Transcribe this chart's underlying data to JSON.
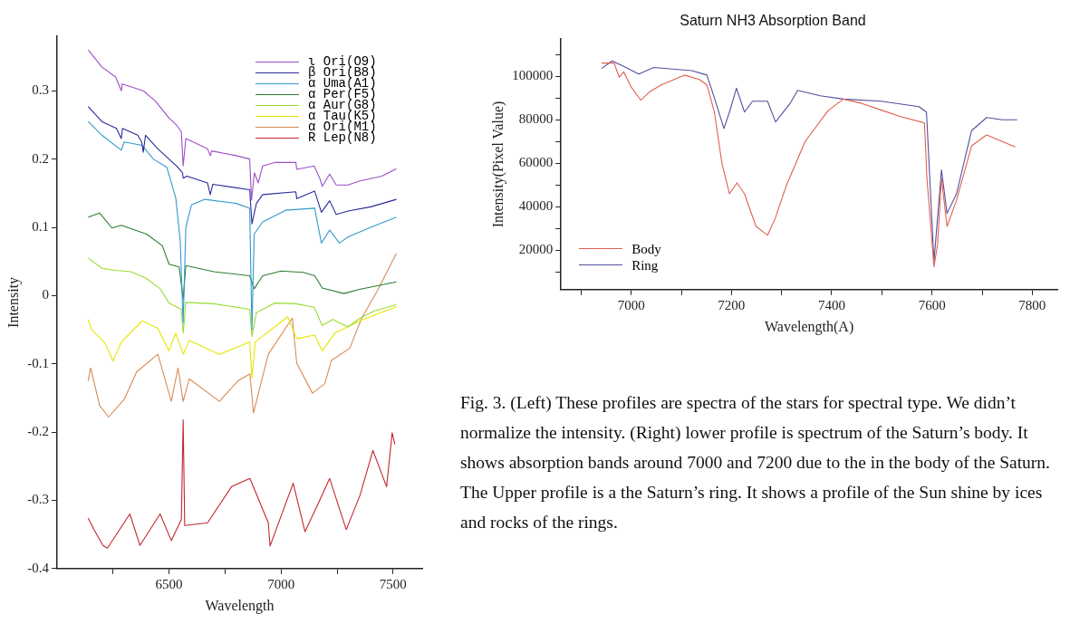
{
  "chart_data": [
    {
      "type": "line",
      "xlabel": "Wavelength",
      "ylabel": "Intensity",
      "xlim": [
        6000,
        7630
      ],
      "xticks": [
        {
          "value": 6250,
          "label": null
        },
        6500,
        {
          "value": 6750,
          "label": null
        },
        7000,
        {
          "value": 7250,
          "label": null
        },
        7500
      ],
      "ylim": [
        -0.4,
        0.38
      ],
      "yticks": [
        -0.4,
        -0.3,
        -0.2,
        -0.1,
        0,
        0.1,
        0.2,
        0.3
      ],
      "grid": false,
      "legend": "top right",
      "marker": "none",
      "line_style": "solid",
      "series": [
        {
          "name": "ι Ori(O9)",
          "color": "#9b4fc8",
          "x": [
            6139,
            6200,
            6262,
            6287,
            6291,
            6385,
            6439,
            6500,
            6533,
            6555,
            6563,
            6575,
            6672,
            6684,
            6690,
            6800,
            6860,
            6868,
            6881,
            6898,
            6918,
            6971,
            7066,
            7070,
            7148,
            7175,
            7184,
            7217,
            7246,
            7299,
            7352,
            7450,
            7515
          ],
          "values": [
            0.36,
            0.335,
            0.32,
            0.3,
            0.31,
            0.3,
            0.285,
            0.26,
            0.25,
            0.24,
            0.19,
            0.23,
            0.215,
            0.205,
            0.212,
            0.205,
            0.2,
            0.14,
            0.18,
            0.165,
            0.19,
            0.195,
            0.195,
            0.185,
            0.19,
            0.17,
            0.16,
            0.178,
            0.162,
            0.162,
            0.168,
            0.175,
            0.186
          ]
        },
        {
          "name": "β Ori(B8)",
          "color": "#2a2a9c",
          "x": [
            6139,
            6200,
            6265,
            6287,
            6292,
            6360,
            6378,
            6385,
            6395,
            6450,
            6533,
            6560,
            6563,
            6580,
            6672,
            6684,
            6695,
            6860,
            6870,
            6890,
            6918,
            7066,
            7070,
            7150,
            7180,
            7217,
            7246,
            7300,
            7400,
            7515
          ],
          "values": [
            0.277,
            0.255,
            0.245,
            0.23,
            0.245,
            0.235,
            0.225,
            0.21,
            0.235,
            0.215,
            0.19,
            0.18,
            0.172,
            0.175,
            0.165,
            0.148,
            0.163,
            0.155,
            0.105,
            0.135,
            0.148,
            0.152,
            0.142,
            0.153,
            0.122,
            0.139,
            0.119,
            0.124,
            0.13,
            0.141
          ]
        },
        {
          "name": "α Uma(A1)",
          "color": "#3399cc",
          "x": [
            6139,
            6200,
            6287,
            6300,
            6380,
            6430,
            6490,
            6530,
            6550,
            6563,
            6575,
            6600,
            6660,
            6800,
            6860,
            6870,
            6880,
            6918,
            7020,
            7150,
            7180,
            7217,
            7260,
            7300,
            7400,
            7515
          ],
          "values": [
            0.255,
            0.235,
            0.213,
            0.225,
            0.22,
            0.2,
            0.188,
            0.143,
            0.08,
            -0.04,
            0.1,
            0.133,
            0.141,
            0.135,
            0.128,
            -0.05,
            0.09,
            0.108,
            0.125,
            0.128,
            0.077,
            0.096,
            0.077,
            0.086,
            0.1,
            0.115
          ]
        },
        {
          "name": "α Per(F5)",
          "color": "#2e7d32",
          "x": [
            6139,
            6190,
            6245,
            6287,
            6400,
            6470,
            6500,
            6545,
            6563,
            6575,
            6700,
            6860,
            6880,
            6918,
            7000,
            7100,
            7150,
            7184,
            7280,
            7350,
            7515
          ],
          "values": [
            0.115,
            0.121,
            0.099,
            0.103,
            0.09,
            0.073,
            0.046,
            0.042,
            -0.005,
            0.044,
            0.035,
            0.029,
            0.01,
            0.029,
            0.036,
            0.034,
            0.029,
            0.011,
            0.003,
            0.009,
            0.02
          ]
        },
        {
          "name": "α Aur(G8)",
          "color": "#99dd33",
          "x": [
            6139,
            6200,
            6262,
            6330,
            6400,
            6460,
            6500,
            6555,
            6563,
            6575,
            6700,
            6860,
            6870,
            6890,
            6971,
            7066,
            7148,
            7184,
            7230,
            7299,
            7352,
            7420,
            7515
          ],
          "values": [
            0.055,
            0.04,
            0.037,
            0.035,
            0.025,
            0.01,
            -0.011,
            -0.02,
            -0.055,
            -0.01,
            -0.012,
            -0.02,
            -0.06,
            -0.025,
            -0.011,
            -0.012,
            -0.017,
            -0.044,
            -0.035,
            -0.046,
            -0.033,
            -0.022,
            -0.013
          ]
        },
        {
          "name": "α Tau(K5)",
          "color": "#e6e600",
          "x": [
            6139,
            6155,
            6215,
            6250,
            6287,
            6380,
            6450,
            6500,
            6530,
            6563,
            6590,
            6725,
            6860,
            6870,
            6885,
            7030,
            7070,
            7150,
            7184,
            7240,
            7352,
            7515
          ],
          "values": [
            -0.035,
            -0.05,
            -0.07,
            -0.096,
            -0.068,
            -0.037,
            -0.048,
            -0.081,
            -0.055,
            -0.086,
            -0.066,
            -0.086,
            -0.068,
            -0.121,
            -0.068,
            -0.031,
            -0.063,
            -0.058,
            -0.081,
            -0.055,
            -0.037,
            -0.016
          ]
        },
        {
          "name": "α Ori(M1)",
          "color": "#d98b55",
          "x": [
            6139,
            6150,
            6190,
            6230,
            6300,
            6355,
            6450,
            6510,
            6540,
            6563,
            6590,
            6725,
            6807,
            6861,
            6877,
            6943,
            7050,
            7070,
            7140,
            7195,
            7225,
            7307,
            7360,
            7430,
            7490,
            7515
          ],
          "values": [
            -0.125,
            -0.106,
            -0.161,
            -0.178,
            -0.152,
            -0.112,
            -0.086,
            -0.155,
            -0.106,
            -0.155,
            -0.122,
            -0.155,
            -0.125,
            -0.115,
            -0.172,
            -0.086,
            -0.033,
            -0.099,
            -0.143,
            -0.129,
            -0.095,
            -0.077,
            -0.033,
            0.007,
            0.046,
            0.062
          ]
        },
        {
          "name": "R Lep(N8)",
          "color": "#c0282d",
          "x": [
            6139,
            6165,
            6205,
            6225,
            6325,
            6370,
            6460,
            6510,
            6555,
            6563,
            6570,
            6672,
            6779,
            6861,
            6943,
            6951,
            7054,
            7107,
            7164,
            7217,
            7291,
            7352,
            7410,
            7471,
            7496,
            7508
          ],
          "values": [
            -0.326,
            -0.343,
            -0.366,
            -0.37,
            -0.32,
            -0.366,
            -0.32,
            -0.359,
            -0.328,
            -0.182,
            -0.337,
            -0.333,
            -0.28,
            -0.268,
            -0.333,
            -0.367,
            -0.275,
            -0.346,
            -0.306,
            -0.268,
            -0.343,
            -0.293,
            -0.227,
            -0.28,
            -0.201,
            -0.218
          ]
        }
      ]
    },
    {
      "type": "line",
      "title": "Saturn NH3 Absorption Band",
      "xlabel": "Wavelength(A)",
      "ylabel": "Intensity(Pixel Value)",
      "xlim": [
        6860,
        7850
      ],
      "xticks": [
        {
          "value": 6900,
          "label": null
        },
        7000,
        {
          "value": 7100,
          "label": null
        },
        7200,
        {
          "value": 7300,
          "label": null
        },
        7400,
        {
          "value": 7500,
          "label": null
        },
        7600,
        {
          "value": 7700,
          "label": null
        },
        7800
      ],
      "ylim": [
        2000,
        117000
      ],
      "yticks": [
        {
          "value": 10000,
          "label": null
        },
        20000,
        {
          "value": 30000,
          "label": null
        },
        40000,
        {
          "value": 50000,
          "label": null
        },
        60000,
        {
          "value": 70000,
          "label": null
        },
        80000,
        {
          "value": 90000,
          "label": null
        },
        100000,
        {
          "value": 110000,
          "label": null
        }
      ],
      "grid": false,
      "legend": "bottom left",
      "marker": "none",
      "line_style": "solid",
      "annotations": [
        "Fig. 3. (Left) These profiles are spectra of the stars for spectral type. We didn’t normalize the intensity. (Right) lower profile is spectrum of the Saturn’s body. It shows absorption bands around 7000 and 7200 due to the in the body of the Saturn. The Upper profile is a the Saturn’s ring. It shows a profile of the Sun shine by ices and rocks of the rings."
      ],
      "series": [
        {
          "name": "Body",
          "color": "#e06050",
          "x": [
            6941,
            6966,
            6976,
            6985,
            7000,
            7019,
            7038,
            7060,
            7106,
            7136,
            7151,
            7166,
            7181,
            7196,
            7211,
            7226,
            7249,
            7272,
            7287,
            7309,
            7347,
            7392,
            7423,
            7460,
            7498,
            7536,
            7585,
            7590,
            7604,
            7611,
            7619,
            7630,
            7649,
            7679,
            7709,
            7740,
            7766
          ],
          "values": [
            106000,
            106000,
            99500,
            102000,
            95000,
            89000,
            93000,
            96000,
            100500,
            98500,
            96000,
            83500,
            60000,
            46000,
            51000,
            46000,
            31000,
            27000,
            34500,
            49500,
            70000,
            84000,
            89500,
            87500,
            84500,
            81500,
            78500,
            53000,
            12500,
            22500,
            53000,
            31000,
            43000,
            68000,
            73000,
            70000,
            67500
          ]
        },
        {
          "name": "Ring",
          "color": "#5050a0",
          "x": [
            6941,
            6962,
            6985,
            7015,
            7045,
            7121,
            7151,
            7166,
            7185,
            7196,
            7210,
            7226,
            7242,
            7272,
            7288,
            7317,
            7332,
            7377,
            7423,
            7498,
            7574,
            7589,
            7604,
            7619,
            7630,
            7649,
            7679,
            7709,
            7740,
            7770
          ],
          "values": [
            103500,
            107000,
            104500,
            101000,
            104000,
            102500,
            100500,
            90000,
            76000,
            83500,
            94500,
            83500,
            88500,
            88500,
            79000,
            87500,
            93500,
            91000,
            89500,
            88500,
            86000,
            83500,
            15000,
            57000,
            37000,
            46000,
            75000,
            81000,
            80000,
            80000
          ]
        }
      ]
    }
  ]
}
